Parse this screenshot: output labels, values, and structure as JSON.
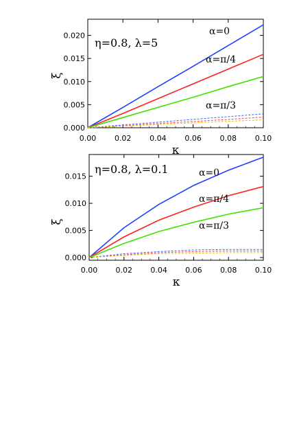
{
  "chart_data": [
    {
      "type": "line",
      "panel": "top",
      "parameters": "η=0.8, λ=5",
      "xlabel": "κ",
      "ylabel": "ξ",
      "xlim": [
        0,
        0.1
      ],
      "ylim": [
        0,
        0.0235
      ],
      "xticks": [
        0.0,
        0.02,
        0.04,
        0.06,
        0.08,
        0.1
      ],
      "xtick_labels": [
        "0.00",
        "0.02",
        "0.04",
        "0.06",
        "0.08",
        "0.10"
      ],
      "yticks": [
        0.0,
        0.005,
        0.01,
        0.015,
        0.02
      ],
      "ytick_labels": [
        "0.000",
        "0.005",
        "0.010",
        "0.015",
        "0.020"
      ],
      "annotations": [
        {
          "text": "α=0",
          "x": 0.085,
          "y": 0.021
        },
        {
          "text": "α=π/4",
          "x": 0.081,
          "y": 0.0148
        },
        {
          "text": "α=π/3",
          "x": 0.082,
          "y": 0.0052
        }
      ],
      "series": [
        {
          "style": "solid",
          "color": "#2040ff",
          "x": [
            0,
            0.02,
            0.04,
            0.06,
            0.08,
            0.1
          ],
          "y": [
            0,
            0.0044,
            0.0089,
            0.0133,
            0.0178,
            0.0223
          ]
        },
        {
          "style": "solid",
          "color": "#ff2020",
          "x": [
            0,
            0.02,
            0.04,
            0.06,
            0.08,
            0.1
          ],
          "y": [
            0,
            0.0031,
            0.0063,
            0.0095,
            0.0127,
            0.0159
          ]
        },
        {
          "style": "solid",
          "color": "#40e000",
          "x": [
            0,
            0.02,
            0.04,
            0.06,
            0.08,
            0.1
          ],
          "y": [
            0,
            0.0022,
            0.0044,
            0.0066,
            0.0089,
            0.0111
          ]
        },
        {
          "style": "dashed",
          "color": "#4060ff",
          "x": [
            0,
            0.02,
            0.04,
            0.06,
            0.08,
            0.1
          ],
          "y": [
            0,
            0.0006,
            0.0012,
            0.0018,
            0.0024,
            0.003
          ]
        },
        {
          "style": "dashed",
          "color": "#ff4040",
          "x": [
            0,
            0.02,
            0.04,
            0.06,
            0.08,
            0.1
          ],
          "y": [
            0,
            0.00045,
            0.0009,
            0.00135,
            0.0018,
            0.0023
          ]
        },
        {
          "style": "dashed",
          "color": "#e0c000",
          "x": [
            0,
            0.02,
            0.04,
            0.06,
            0.08,
            0.1
          ],
          "y": [
            0,
            0.00035,
            0.0007,
            0.00105,
            0.0014,
            0.0017
          ]
        }
      ]
    },
    {
      "type": "line",
      "panel": "bottom",
      "parameters": "η=0.8, λ=0.1",
      "xlabel": "κ",
      "ylabel": "ξ",
      "xlim": [
        0,
        0.1
      ],
      "ylim": [
        -0.0005,
        0.019
      ],
      "xticks": [
        0.0,
        0.02,
        0.04,
        0.06,
        0.08,
        0.1
      ],
      "xtick_labels": [
        "0.00",
        "0.02",
        "0.04",
        "0.06",
        "0.08",
        "0.10"
      ],
      "yticks": [
        0.0,
        0.005,
        0.01,
        0.015
      ],
      "ytick_labels": [
        "0.000",
        "0.005",
        "0.010",
        "0.015"
      ],
      "annotations": [
        {
          "text": "α=0",
          "x": 0.06,
          "y": 0.0163
        },
        {
          "text": "α=π/4",
          "x": 0.06,
          "y": 0.0112
        },
        {
          "text": "α=π/3",
          "x": 0.06,
          "y": 0.0064
        }
      ],
      "series": [
        {
          "style": "solid",
          "color": "#2040ff",
          "x": [
            0,
            0.02,
            0.04,
            0.06,
            0.08,
            0.1
          ],
          "y": [
            0,
            0.0055,
            0.0098,
            0.0133,
            0.0161,
            0.0185
          ]
        },
        {
          "style": "solid",
          "color": "#ff2020",
          "x": [
            0,
            0.02,
            0.04,
            0.06,
            0.08,
            0.1
          ],
          "y": [
            0,
            0.0038,
            0.0069,
            0.0093,
            0.0114,
            0.0131
          ]
        },
        {
          "style": "solid",
          "color": "#40e000",
          "x": [
            0,
            0.02,
            0.04,
            0.06,
            0.08,
            0.1
          ],
          "y": [
            0,
            0.0026,
            0.0048,
            0.0065,
            0.008,
            0.0092
          ]
        },
        {
          "style": "dashed",
          "color": "#4060ff",
          "x": [
            0,
            0.02,
            0.04,
            0.06,
            0.08,
            0.1
          ],
          "y": [
            0,
            0.0007,
            0.0011,
            0.0014,
            0.0015,
            0.0015
          ]
        },
        {
          "style": "dashed",
          "color": "#ff4040",
          "x": [
            0,
            0.02,
            0.04,
            0.06,
            0.08,
            0.1
          ],
          "y": [
            0,
            0.0005,
            0.0009,
            0.0011,
            0.0012,
            0.0012
          ]
        },
        {
          "style": "dashed",
          "color": "#e0c000",
          "x": [
            0,
            0.02,
            0.04,
            0.06,
            0.08,
            0.1
          ],
          "y": [
            0,
            0.0004,
            0.0007,
            0.0008,
            0.0009,
            0.0009
          ]
        }
      ]
    }
  ]
}
